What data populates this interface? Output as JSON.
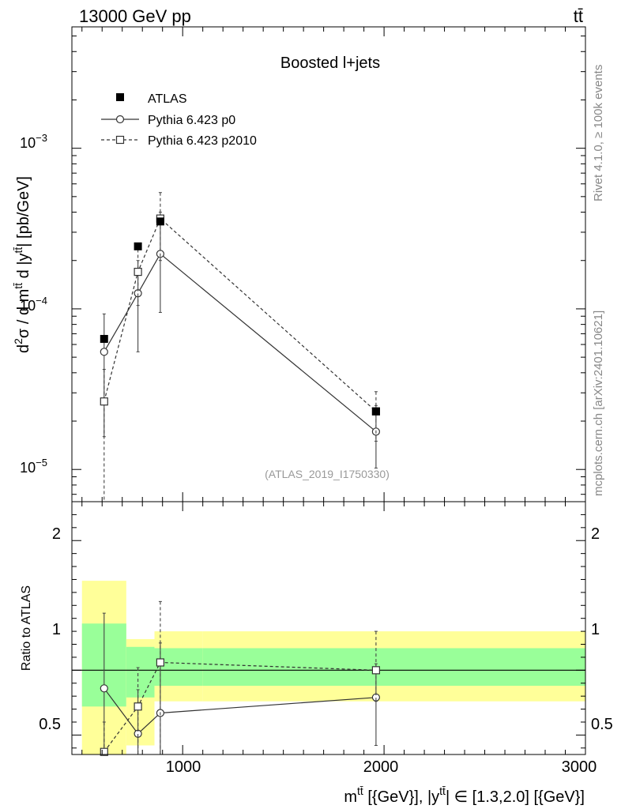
{
  "header": {
    "left": "13000 GeV pp",
    "right": "tt̄"
  },
  "side_labels": {
    "top": "Rivet 4.1.0, ≥ 100k events",
    "bottom": "mcplots.cern.ch [arXiv:2401.10621]"
  },
  "chart_data": {
    "type": "line",
    "title": "Boosted l+jets",
    "analysis_id": "(ATLAS_2019_I1750330)",
    "xlabel": "m^{tt̄} [{GeV}], |y^{tt̄}| ∈ [1.3,2.0] [{GeV}]",
    "xlabel_parts": {
      "m": "m",
      "sup1": "tt̄",
      "mid": " [{GeV}], |y",
      "sup2": "tt̄",
      "tail": "| ∈ [1.3,2.0] [{GeV}]"
    },
    "ylabel": "d²σ / d m^{tt̄} d |y^{tt̄}| [pb/GeV]",
    "ylabel_parts": {
      "d": "d",
      "two": "2",
      "sigma": "σ / d m",
      "sup1": "tt̄",
      "mid": " d |y",
      "sup2": "tt̄",
      "tail": "| [pb/GeV]"
    },
    "ratio_ylabel": "Ratio to ATLAS",
    "xlim": [
      450,
      3000
    ],
    "ylim_main": [
      6.3e-06,
      0.0057
    ],
    "ylim_ratio": [
      0.35,
      2.3
    ],
    "x_ticks": [
      1000,
      2000,
      3000
    ],
    "x_tick_labels": [
      "1000",
      "2000",
      "3000"
    ],
    "y_ticks_main": [
      1e-05,
      0.0001,
      0.001
    ],
    "y_tick_labels_main": {
      "e5": {
        "base": "10",
        "exp": "−5"
      },
      "e4": {
        "base": "10",
        "exp": "−4"
      },
      "e3": {
        "base": "10",
        "exp": "−3"
      }
    },
    "y_ticks_ratio": [
      0.5,
      1,
      2
    ],
    "y_tick_labels_ratio": [
      "0.5",
      "1",
      "2"
    ],
    "legend": {
      "placement": "top-left",
      "entries": [
        "ATLAS",
        "Pythia 6.423 p0",
        "Pythia 6.423 p2010"
      ]
    },
    "bins": [
      {
        "lo": 500,
        "hi": 720,
        "atlas": 6.5e-05,
        "band_stat": [
          0.72,
          1.36
        ],
        "band_tot": [
          0.33,
          1.69
        ]
      },
      {
        "lo": 720,
        "hi": 860,
        "atlas": 0.000245,
        "band_stat": [
          0.79,
          1.18
        ],
        "band_tot": [
          0.42,
          1.24
        ]
      },
      {
        "lo": 860,
        "hi": 1100,
        "atlas": 0.00035,
        "band_stat": [
          0.88,
          1.17
        ],
        "band_tot": [
          0.76,
          1.3
        ]
      },
      {
        "lo": 1100,
        "hi": 3000,
        "atlas": 2.3e-05,
        "band_stat": [
          0.88,
          1.17
        ],
        "band_tot": [
          0.76,
          1.3
        ]
      }
    ],
    "series": [
      {
        "name": "ATLAS",
        "x": [
          610,
          778,
          889,
          1960
        ],
        "y": [
          6.5e-05,
          0.000245,
          0.00035,
          2.3e-05
        ]
      },
      {
        "name": "Pythia 6.423 p0",
        "x": [
          610,
          778,
          889,
          1960
        ],
        "y": [
          5.4e-05,
          0.000125,
          0.00022,
          1.72e-05
        ],
        "err_lo": [
          1.6e-05,
          5.4e-05,
          9.5e-05,
          1.02e-05
        ],
        "err_hi": [
          9.3e-05,
          0.0002,
          0.0004,
          2.5e-05
        ],
        "ratio": [
          0.86,
          0.51,
          0.67,
          0.79
        ],
        "ratio_err_lo": [
          0.3,
          0.3,
          0.3,
          0.42
        ],
        "ratio_err_hi": [
          1.44,
          0.85,
          1.21,
          1.05
        ]
      },
      {
        "name": "Pythia 6.423 p2010",
        "x": [
          610,
          778,
          889,
          1960
        ],
        "y": [
          2.65e-05,
          0.00017,
          0.000365,
          2.3e-05
        ],
        "err_lo": [
          1e-06,
          0.000105,
          0.0002,
          1.5e-05
        ],
        "err_hi": [
          4.2e-05,
          0.000235,
          0.00053,
          3.05e-05
        ],
        "ratio": [
          0.37,
          0.72,
          1.06,
          1.0
        ],
        "ratio_err_lo": [
          0.3,
          0.3,
          0.3,
          0.76
        ],
        "ratio_err_hi": [
          0.6,
          1.02,
          1.53,
          1.3
        ]
      }
    ]
  }
}
